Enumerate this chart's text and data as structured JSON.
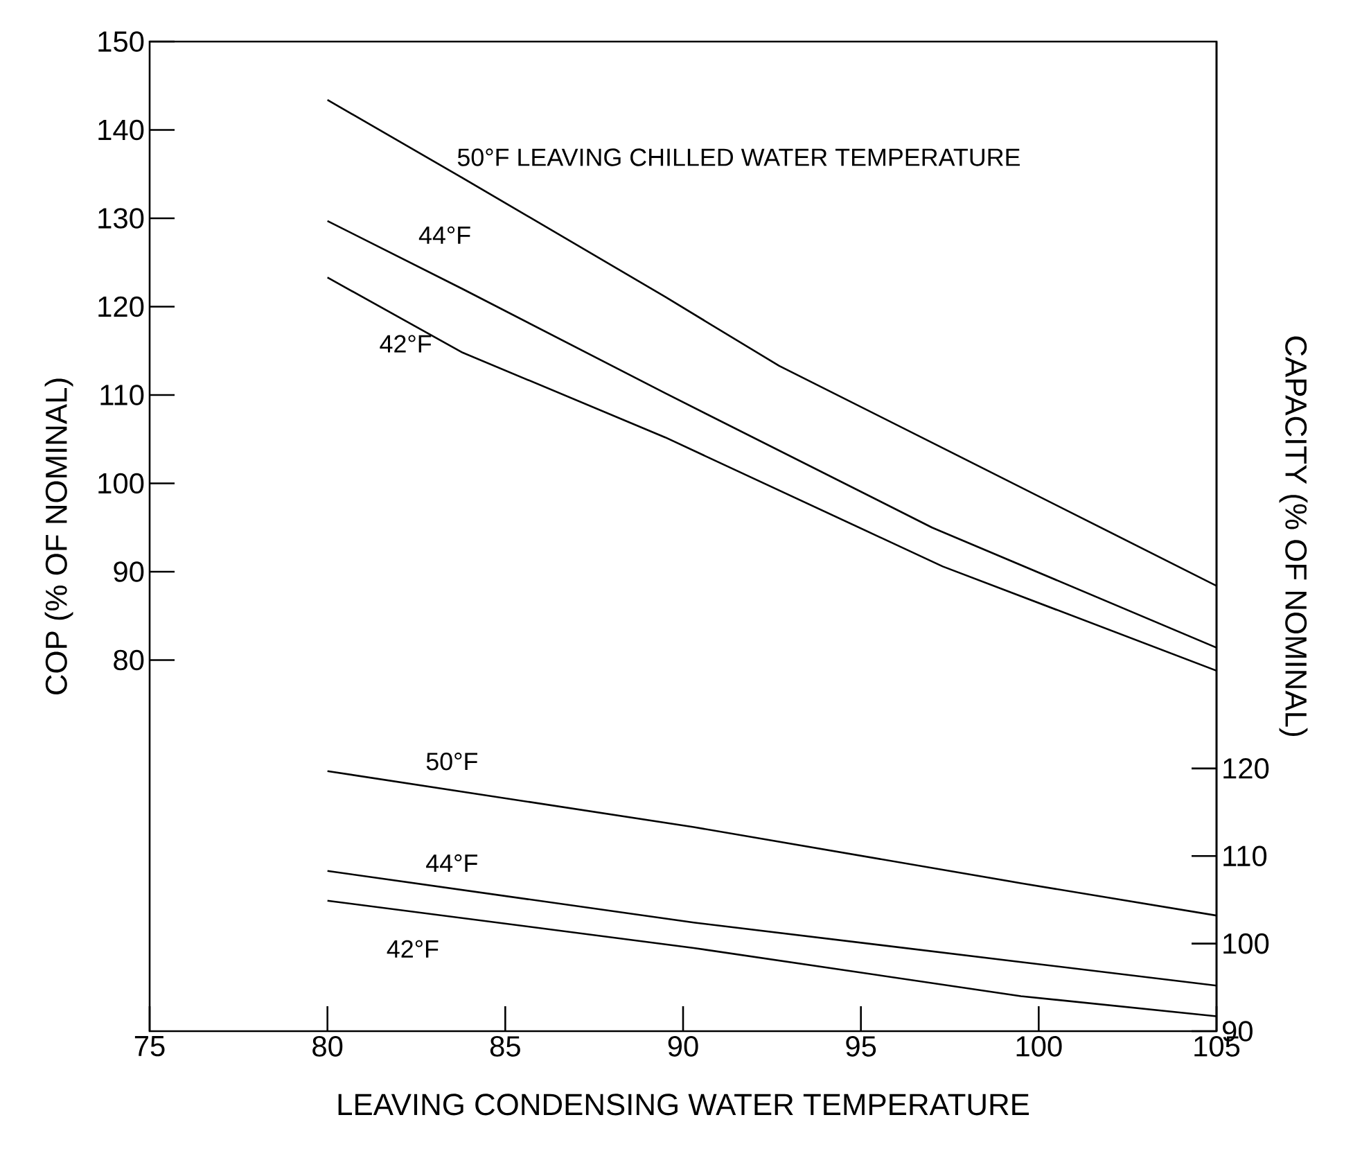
{
  "chart_data": {
    "type": "line",
    "xlabel": "LEAVING CONDENSING WATER TEMPERATURE",
    "ylabel": "COP (% OF NOMINAL)",
    "y2label": "CAPACITY (% OF NOMINAL)",
    "xlim": [
      75,
      105
    ],
    "xticks": [
      75,
      80,
      85,
      90,
      95,
      100,
      105
    ],
    "ylim": [
      38,
      150
    ],
    "yticks": [
      80,
      90,
      100,
      110,
      120,
      130,
      140,
      150
    ],
    "y2lim": [
      90,
      203
    ],
    "y2ticks": [
      90,
      100,
      110,
      120
    ],
    "marker": "none",
    "line_style": "solid",
    "series": [
      {
        "name": "50°F LEAVING CHILLED WATER TEMPERATURE",
        "color": "#000000",
        "axis": "y",
        "x": [
          80,
          83.7,
          89.5,
          92.7,
          97.5,
          105
        ],
        "values": [
          143.4,
          134.8,
          121.1,
          113.3,
          103.6,
          88.4
        ]
      },
      {
        "name": "44°F",
        "color": "#000000",
        "axis": "y",
        "x": [
          80,
          83.8,
          89.5,
          97,
          105
        ],
        "values": [
          129.7,
          122,
          110.2,
          95,
          81.4
        ]
      },
      {
        "name": "42°F",
        "color": "#000000",
        "axis": "y",
        "x": [
          80,
          83.8,
          89.5,
          97.3,
          105
        ],
        "values": [
          123.3,
          114.8,
          105.2,
          90.6,
          78.8
        ]
      },
      {
        "name": "50°F",
        "color": "#000000",
        "axis": "y2",
        "x": [
          80,
          90.3,
          99.5,
          105
        ],
        "values": [
          119.7,
          113.3,
          106.9,
          103.2
        ]
      },
      {
        "name": "44°F",
        "color": "#000000",
        "axis": "y2",
        "x": [
          80,
          90.3,
          99.5,
          105
        ],
        "values": [
          108.3,
          102.4,
          97.9,
          95.2
        ]
      },
      {
        "name": "42°F",
        "color": "#000000",
        "axis": "y2",
        "x": [
          80,
          90.3,
          99.5,
          105
        ],
        "values": [
          104.9,
          99.5,
          94,
          91.7
        ]
      }
    ]
  }
}
